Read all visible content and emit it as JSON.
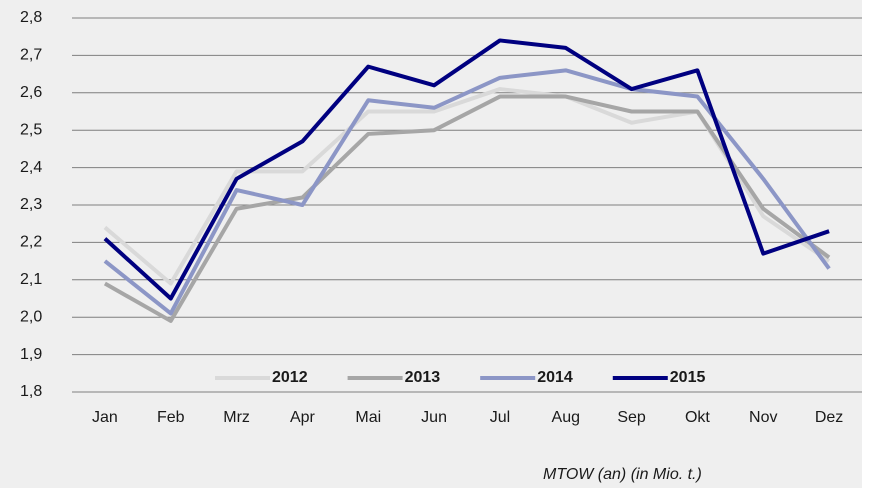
{
  "chart_data": {
    "type": "line",
    "categories": [
      "Jan",
      "Feb",
      "Mrz",
      "Apr",
      "Mai",
      "Jun",
      "Jul",
      "Aug",
      "Sep",
      "Okt",
      "Nov",
      "Dez"
    ],
    "series": [
      {
        "name": "2012",
        "color": "#d9d9d9",
        "values": [
          2.24,
          2.09,
          2.39,
          2.39,
          2.55,
          2.55,
          2.61,
          2.59,
          2.52,
          2.55,
          2.27,
          2.15
        ]
      },
      {
        "name": "2013",
        "color": "#a6a6a6",
        "values": [
          2.09,
          1.99,
          2.29,
          2.32,
          2.49,
          2.5,
          2.59,
          2.59,
          2.55,
          2.55,
          2.29,
          2.16
        ]
      },
      {
        "name": "2014",
        "color": "#8c96c6",
        "values": [
          2.15,
          2.01,
          2.34,
          2.3,
          2.58,
          2.56,
          2.64,
          2.66,
          2.61,
          2.59,
          2.37,
          2.13
        ]
      },
      {
        "name": "2015",
        "color": "#000080",
        "values": [
          2.21,
          2.05,
          2.37,
          2.47,
          2.67,
          2.62,
          2.74,
          2.72,
          2.61,
          2.66,
          2.17,
          2.23
        ]
      }
    ],
    "ylim": [
      1.8,
      2.8
    ],
    "yticks": [
      {
        "value": 1.8,
        "label": "1,8"
      },
      {
        "value": 1.9,
        "label": "1,9"
      },
      {
        "value": 2.0,
        "label": "2,0"
      },
      {
        "value": 2.1,
        "label": "2,1"
      },
      {
        "value": 2.2,
        "label": "2,2"
      },
      {
        "value": 2.3,
        "label": "2,3"
      },
      {
        "value": 2.4,
        "label": "2,4"
      },
      {
        "value": 2.5,
        "label": "2,5"
      },
      {
        "value": 2.6,
        "label": "2,6"
      },
      {
        "value": 2.7,
        "label": "2,7"
      },
      {
        "value": 2.8,
        "label": "2,8"
      }
    ],
    "grid": true,
    "legend": "bottom",
    "footnote": "MTOW (an) (in Mio. t.)"
  }
}
